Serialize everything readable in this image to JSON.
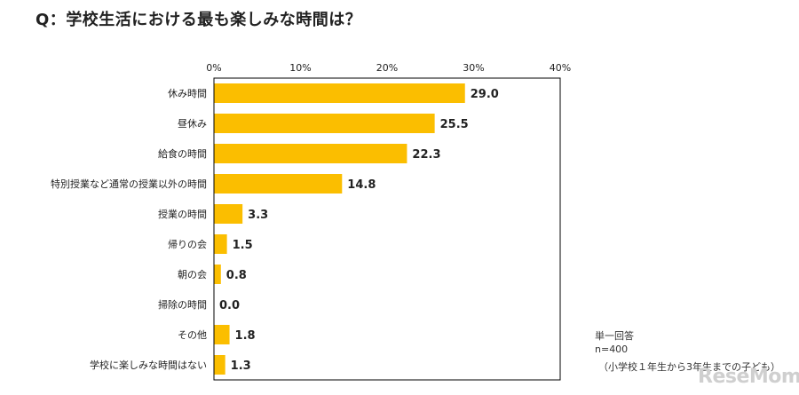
{
  "title": "Q：学校生活における最も楽しみな時間は？",
  "notes": {
    "answer_type": "単一回答",
    "sample": "n=400",
    "population": "（小学校１年生から3年生までの子ども）"
  },
  "logo_text": "ReseMom",
  "colors": {
    "bar": "#FBBE00",
    "axis": "#000000",
    "text": "#222222"
  },
  "chart_data": {
    "type": "bar",
    "orientation": "horizontal",
    "title": "Q：学校生活における最も楽しみな時間は？",
    "xlabel": "",
    "ylabel": "",
    "unit": "%",
    "xlim": [
      0,
      40
    ],
    "xticks": [
      "0%",
      "10%",
      "20%",
      "30%",
      "40%"
    ],
    "tick_values": [
      0,
      10,
      20,
      30,
      40
    ],
    "grid": false,
    "categories": [
      "休み時間",
      "昼休み",
      "給食の時間",
      "特別授業など通常の授業以外の時間",
      "授業の時間",
      "帰りの会",
      "朝の会",
      "掃除の時間",
      "その他",
      "学校に楽しみな時間はない"
    ],
    "values": [
      29.0,
      25.5,
      22.3,
      14.8,
      3.3,
      1.5,
      0.8,
      0.0,
      1.8,
      1.3
    ],
    "value_labels": [
      "29.0",
      "25.5",
      "22.3",
      "14.8",
      "3.3",
      "1.5",
      "0.8",
      "0.0",
      "1.8",
      "1.3"
    ]
  }
}
